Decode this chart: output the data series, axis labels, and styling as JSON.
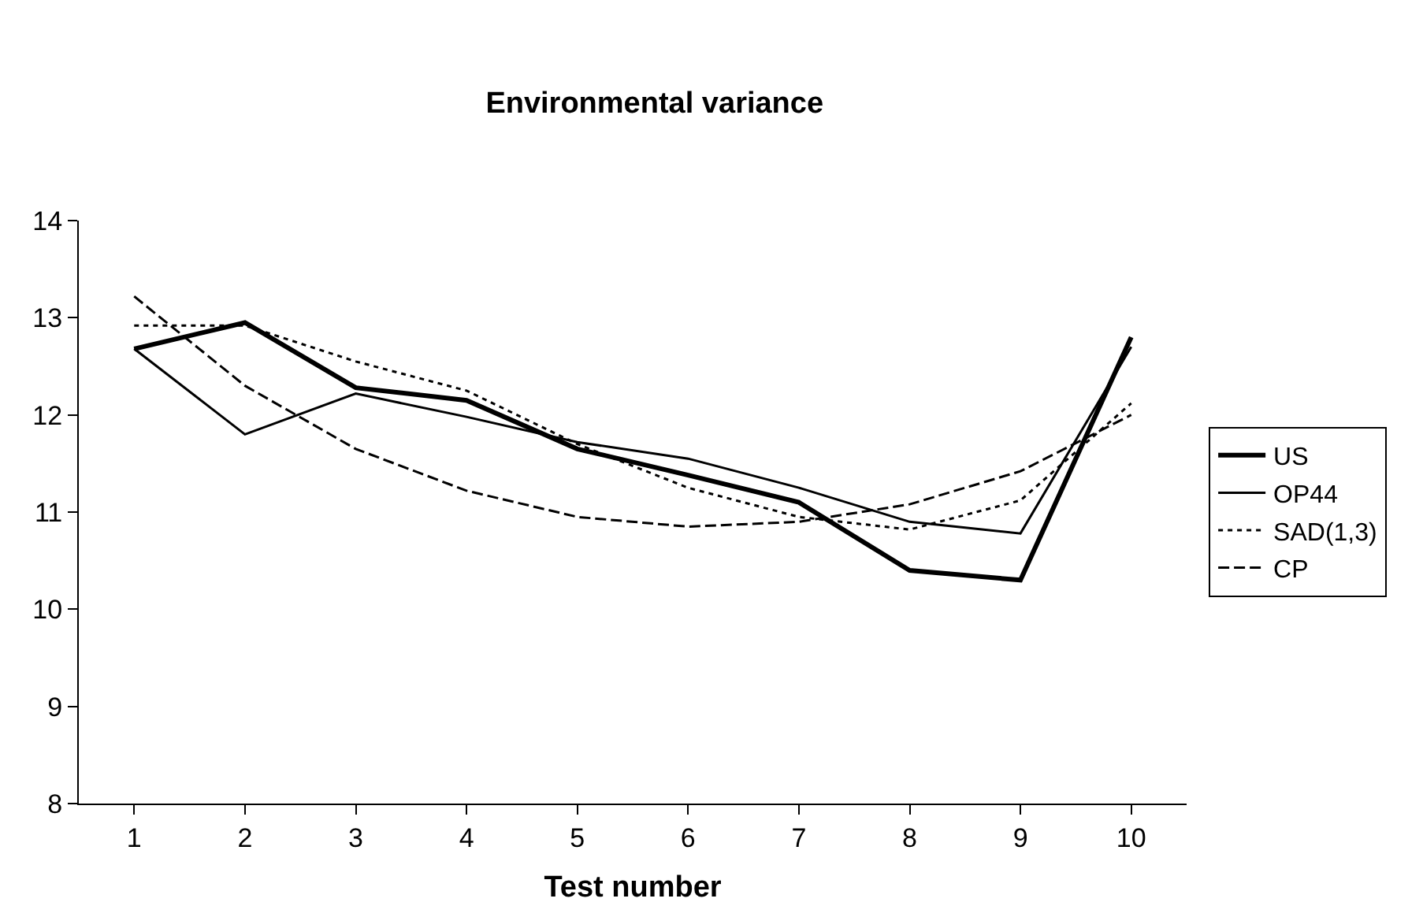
{
  "chart_data": {
    "type": "line",
    "title": "Environmental variance",
    "xlabel": "Test number",
    "x": [
      1,
      2,
      3,
      4,
      5,
      6,
      7,
      8,
      9,
      10
    ],
    "xlim": [
      0.5,
      10.5
    ],
    "xticks": [
      1,
      2,
      3,
      4,
      5,
      6,
      7,
      8,
      9,
      10
    ],
    "ylim": [
      8,
      14
    ],
    "yticks": [
      8,
      9,
      10,
      11,
      12,
      13,
      14
    ],
    "grid": false,
    "legend": "right",
    "marker": "none",
    "series": [
      {
        "name": "US",
        "color": "#000000",
        "line_style": "solid",
        "values": [
          12.68,
          12.95,
          12.28,
          12.15,
          11.65,
          11.38,
          11.1,
          10.4,
          10.3,
          12.8
        ]
      },
      {
        "name": "OP44",
        "color": "#000000",
        "line_style": "solid",
        "values": [
          12.68,
          11.8,
          12.22,
          11.98,
          11.72,
          11.55,
          11.25,
          10.9,
          10.78,
          12.7
        ]
      },
      {
        "name": "SAD(1,3)",
        "color": "#000000",
        "line_style": "dotted",
        "values": [
          12.92,
          12.92,
          12.55,
          12.25,
          11.7,
          11.25,
          10.95,
          10.82,
          11.12,
          12.12
        ]
      },
      {
        "name": "CP",
        "color": "#000000",
        "line_style": "dashed",
        "values": [
          13.22,
          12.3,
          11.65,
          11.22,
          10.95,
          10.85,
          10.9,
          11.08,
          11.42,
          12.0
        ]
      }
    ]
  }
}
